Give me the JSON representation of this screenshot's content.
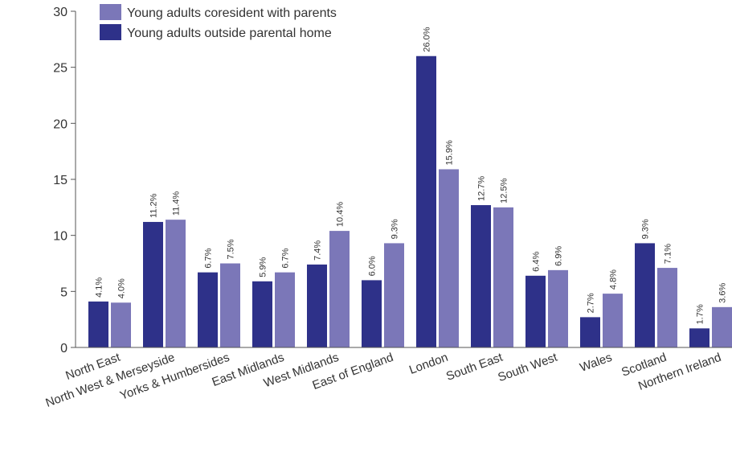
{
  "chart_data": {
    "type": "bar",
    "title": "",
    "xlabel": "",
    "ylabel": "",
    "ylim": [
      0,
      30
    ],
    "yticks": [
      0,
      5,
      10,
      15,
      20,
      25,
      30
    ],
    "grid": false,
    "legend_position": "top-left",
    "categories": [
      "North East",
      "North West & Merseyside",
      "Yorks & Humbersides",
      "East Midlands",
      "West Midlands",
      "East of England",
      "London",
      "South East",
      "South West",
      "Wales",
      "Scotland",
      "Northern Ireland"
    ],
    "series": [
      {
        "name": "Young adults outside parental home",
        "color": "#2e3189",
        "values": [
          4.1,
          11.2,
          6.7,
          5.9,
          7.4,
          6.0,
          26.0,
          12.7,
          6.4,
          2.7,
          9.3,
          1.7
        ],
        "labels": [
          "4.1%",
          "11.2%",
          "6.7%",
          "5.9%",
          "7.4%",
          "6.0%",
          "26.0%",
          "12.7%",
          "6.4%",
          "2.7%",
          "9.3%",
          "1.7%"
        ]
      },
      {
        "name": "Young adults coresident with parents",
        "color": "#7b77b8",
        "values": [
          4.0,
          11.4,
          7.5,
          6.7,
          10.4,
          9.3,
          15.9,
          12.5,
          6.9,
          4.8,
          7.1,
          3.6
        ],
        "labels": [
          "4.0%",
          "11.4%",
          "7.5%",
          "6.7%",
          "10.4%",
          "9.3%",
          "15.9%",
          "12.5%",
          "6.9%",
          "4.8%",
          "7.1%",
          "3.6%"
        ]
      }
    ],
    "legend": [
      {
        "label": "Young adults coresident with parents",
        "color": "#7b77b8"
      },
      {
        "label": "Young adults outside parental home",
        "color": "#2e3189"
      }
    ]
  }
}
